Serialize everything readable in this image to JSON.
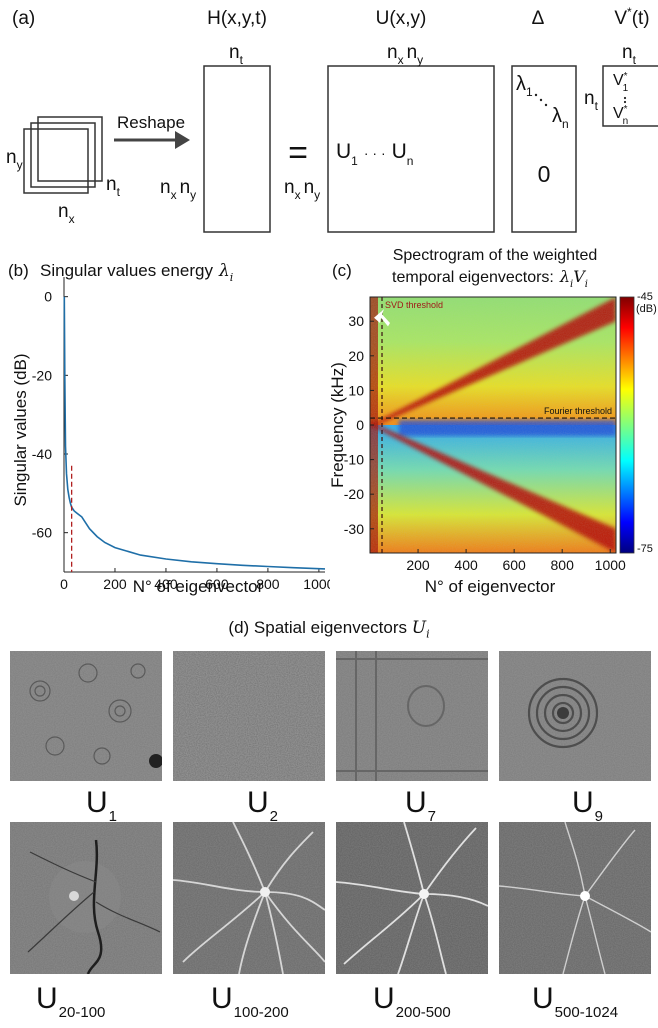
{
  "panel_a": {
    "label": "(a)",
    "H_title": "H(x,y,t)",
    "U_title": "U(x,y)",
    "Delta_title": "Δ",
    "V_title": "V",
    "V_title_sup": "*",
    "V_title_tail": "(t)",
    "reshape": "Reshape",
    "equals": "=",
    "n": "n",
    "sub_x": "x",
    "sub_y": "y",
    "sub_t": "t",
    "sub_1": "1",
    "sub_n": "n",
    "U_letter": "U",
    "U_dots": "· · ·",
    "lambda": "λ",
    "zero": "0",
    "V_letter": "V",
    "star": "*"
  },
  "panel_b": {
    "label": "(b)",
    "title": "Singular values energy",
    "title_math": "λ",
    "title_math_sub": "i",
    "ylabel": "Singular values (dB)",
    "xlabel": "N° of eigenvector"
  },
  "panel_c": {
    "label": "(c)",
    "title_line1": "Spectrogram of the weighted",
    "title_line2": "temporal eigenvectors:",
    "title_math": "λ",
    "title_math_sub": "i",
    "title_math2": "V",
    "title_math2_sub": "i",
    "ylabel": "Frequency (kHz)",
    "xlabel": "N° of eigenvector",
    "svd_threshold": "SVD threshold",
    "fourier_threshold": "Fourier threshold",
    "colorbar_max": "-45",
    "colorbar_unit": "(dB)",
    "colorbar_min": "-75"
  },
  "panel_d": {
    "title": "(d) Spatial eigenvectors",
    "title_math": "U",
    "title_math_sub": "i",
    "row1": [
      {
        "main": "U",
        "sub": "1"
      },
      {
        "main": "U",
        "sub": "2"
      },
      {
        "main": "U",
        "sub": "7"
      },
      {
        "main": "U",
        "sub": "9"
      }
    ],
    "row2": [
      {
        "main": "U",
        "sub": "20-100"
      },
      {
        "main": "U",
        "sub": "100-200"
      },
      {
        "main": "U",
        "sub": "200-500"
      },
      {
        "main": "U",
        "sub": "500-1024"
      }
    ]
  },
  "chart_data": [
    {
      "type": "line",
      "title": "Singular values energy λ_i",
      "xlabel": "N° of eigenvector",
      "ylabel": "Singular values (dB)",
      "xlim": [
        0,
        1024
      ],
      "ylim": [
        -70,
        5
      ],
      "xticks": [
        "0",
        "200",
        "400",
        "600",
        "800",
        "1000"
      ],
      "yticks": [
        "0",
        "-20",
        "-40",
        "-60"
      ],
      "threshold_x": 30,
      "series": [
        {
          "color": "#1f6fa8",
          "x": [
            1,
            3,
            6,
            10,
            15,
            20,
            25,
            30,
            40,
            50,
            60,
            70,
            80,
            100,
            130,
            160,
            200,
            300,
            400,
            500,
            600,
            700,
            800,
            900,
            1024
          ],
          "y": [
            0,
            -20,
            -38,
            -45,
            -49,
            -51,
            -52.5,
            -53.5,
            -54.5,
            -55,
            -55.5,
            -56,
            -57,
            -59,
            -61,
            -62.5,
            -63.8,
            -65.7,
            -66.7,
            -67.4,
            -67.9,
            -68.3,
            -68.6,
            -68.9,
            -69.2
          ]
        }
      ]
    },
    {
      "type": "heatmap",
      "title": "Spectrogram of the weighted temporal eigenvectors",
      "xlabel": "N° of eigenvector",
      "ylabel": "Frequency (kHz)",
      "xlim": [
        0,
        1024
      ],
      "ylim": [
        -37,
        37
      ],
      "xticks": [
        "200",
        "400",
        "600",
        "800",
        "1000"
      ],
      "yticks": [
        "30",
        "20",
        "10",
        "0",
        "-10",
        "-20",
        "-30"
      ],
      "colorbar": {
        "min": -75,
        "max": -45,
        "unit": "dB"
      },
      "svd_threshold_x": 50,
      "fourier_threshold_kHz": 2
    }
  ]
}
